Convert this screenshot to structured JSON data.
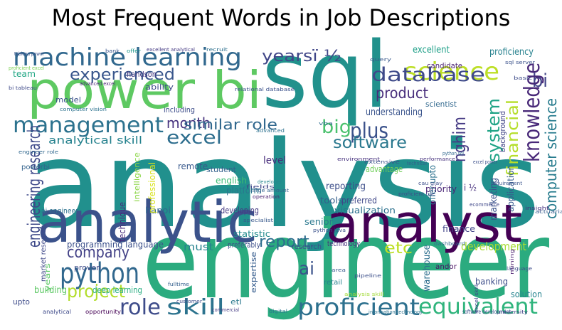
{
  "chart_data": {
    "type": "wordcloud",
    "title": "Most Frequent Words in Job Descriptions",
    "words": [
      {
        "text": "analysis",
        "color": "#21908d"
      },
      {
        "text": "engineer",
        "color": "#2bab7f"
      },
      {
        "text": "sql",
        "color": "#21918c"
      },
      {
        "text": "power bi",
        "color": "#5ec962"
      },
      {
        "text": "analytic",
        "color": "#3b528b"
      },
      {
        "text": "analyst",
        "color": "#440154"
      },
      {
        "text": "machine learning",
        "color": "#31688e"
      },
      {
        "text": "management",
        "color": "#2c728e"
      },
      {
        "text": "science",
        "color": "#bddf26"
      },
      {
        "text": "database",
        "color": "#3e4a89"
      },
      {
        "text": "bi",
        "color": "#414487"
      },
      {
        "text": "knowledge",
        "color": "#482878"
      },
      {
        "text": "financial",
        "color": "#b5de2b"
      },
      {
        "text": "computer science",
        "color": "#287c8e"
      },
      {
        "text": "system",
        "color": "#20a486"
      },
      {
        "text": "experienced",
        "color": "#39568c"
      },
      {
        "text": "yearsï ½",
        "color": "#404688"
      },
      {
        "text": "month",
        "color": "#46327e"
      },
      {
        "text": "excel",
        "color": "#2e6e8e"
      },
      {
        "text": "similar role",
        "color": "#31688e"
      },
      {
        "text": "big",
        "color": "#4ac16d"
      },
      {
        "text": "plus",
        "color": "#3b528b"
      },
      {
        "text": "product",
        "color": "#472d7b"
      },
      {
        "text": "software",
        "color": "#2a788e"
      },
      {
        "text": "nghim",
        "color": "#443983"
      },
      {
        "text": "engineering research",
        "color": "#3e4989"
      },
      {
        "text": "analytical skill",
        "color": "#26828e"
      },
      {
        "text": "report.",
        "color": "#2e6e8e"
      },
      {
        "text": "etc",
        "color": "#bddf26"
      },
      {
        "text": "development",
        "color": "#a8db34"
      },
      {
        "text": "company",
        "color": "#424086"
      },
      {
        "text": "python",
        "color": "#31688e"
      },
      {
        "text": "project",
        "color": "#b2dd2d"
      },
      {
        "text": "role",
        "color": "#3e4c8a"
      },
      {
        "text": "skill",
        "color": "#2c738e"
      },
      {
        "text": "ai",
        "color": "#3b528b"
      },
      {
        "text": "proficient",
        "color": "#2d708e"
      },
      {
        "text": "equivalent",
        "color": "#2fb47c"
      },
      {
        "text": "level",
        "color": "#472c7a"
      },
      {
        "text": "english",
        "color": "#3dbc74"
      },
      {
        "text": "platform",
        "color": "#2a778e"
      },
      {
        "text": "reporting",
        "color": "#3d4e8a"
      },
      {
        "text": "tools",
        "color": "#35608d"
      },
      {
        "text": "preferred",
        "color": "#3f4788"
      },
      {
        "text": "visualization",
        "color": "#2c718e"
      },
      {
        "text": "must",
        "color": "#26828e"
      },
      {
        "text": "programming language",
        "color": "#3c508b"
      },
      {
        "text": "marketing",
        "color": "#3b528b"
      },
      {
        "text": "priority",
        "color": "#482475"
      },
      {
        "text": "finance",
        "color": "#404387"
      },
      {
        "text": "banking",
        "color": "#3d4e8a"
      },
      {
        "text": "solution",
        "color": "#25838e"
      },
      {
        "text": "warehouse",
        "color": "#2e6f8e"
      },
      {
        "text": "building",
        "color": "#5cc863"
      },
      {
        "text": "deep learning",
        "color": "#27ad81"
      },
      {
        "text": "hanoi",
        "color": "#31678e"
      },
      {
        "text": "remote",
        "color": "#38598c"
      },
      {
        "text": "technique",
        "color": "#472a7a"
      },
      {
        "text": "developing",
        "color": "#443a83"
      },
      {
        "text": "statistic",
        "color": "#238a8d"
      },
      {
        "text": "senior",
        "color": "#2a788e"
      },
      {
        "text": "understanding",
        "color": "#3a548c"
      },
      {
        "text": "scientist",
        "color": "#31688e"
      },
      {
        "text": "excellent",
        "color": "#1fa088"
      },
      {
        "text": "proficiency",
        "color": "#26818e"
      },
      {
        "text": "candidate",
        "color": "#481f70"
      },
      {
        "text": "handson",
        "color": "#453882"
      },
      {
        "text": "ability",
        "color": "#3e4c8a"
      },
      {
        "text": "including",
        "color": "#3d4d8a"
      },
      {
        "text": "model",
        "color": "#3a538b"
      },
      {
        "text": "team",
        "color": "#22a785"
      },
      {
        "text": "advantage",
        "color": "#6ece58"
      },
      {
        "text": "offer upto",
        "color": "#2c728e"
      },
      {
        "text": "application",
        "color": "#375b8d"
      },
      {
        "text": "background",
        "color": "#414487"
      },
      {
        "text": "student",
        "color": "#34618d"
      },
      {
        "text": "technology",
        "color": "#46307e"
      },
      {
        "text": "research",
        "color": "#3c4f8a"
      },
      {
        "text": "andor",
        "color": "#471063"
      },
      {
        "text": "proven",
        "color": "#3e4a89"
      },
      {
        "text": "upto",
        "color": "#3e4c8a"
      },
      {
        "text": "etl",
        "color": "#2a788e"
      },
      {
        "text": "retail",
        "color": "#26828e"
      },
      {
        "text": "expertise",
        "color": "#365c8d"
      },
      {
        "text": "preferably",
        "color": "#3d4e8a"
      },
      {
        "text": "i ½",
        "color": "#472f7d"
      },
      {
        "text": "ai engineer",
        "color": "#2c728e"
      },
      {
        "text": "powerbi",
        "color": "#33638d"
      },
      {
        "text": "professional",
        "color": "#d8e219"
      },
      {
        "text": "intelligence",
        "color": "#8bd646"
      },
      {
        "text": "market research",
        "color": "#3f4889"
      },
      {
        "text": "years",
        "color": "#5ac864"
      },
      {
        "text": "tableau power",
        "color": "#3b528b"
      },
      {
        "text": "bank",
        "color": "#39568c"
      },
      {
        "text": "excellent analytical",
        "color": "#443983"
      },
      {
        "text": "recruit",
        "color": "#2d708e"
      },
      {
        "text": "offer",
        "color": "#1f968b"
      },
      {
        "text": "proficient excel",
        "color": "#7ad151"
      },
      {
        "text": "bi tableau",
        "color": "#3e4989"
      },
      {
        "text": "advanced excel",
        "color": "#482475"
      },
      {
        "text": "query",
        "color": "#38598c"
      },
      {
        "text": "sql server",
        "color": "#3b528b"
      },
      {
        "text": "basic",
        "color": "#3e4c8a"
      },
      {
        "text": "vba",
        "color": "#2f6c8e"
      },
      {
        "text": "environment",
        "color": "#46317e"
      },
      {
        "text": "advanced",
        "color": "#2c718e"
      },
      {
        "text": "fulltime",
        "color": "#35608d"
      },
      {
        "text": "customer",
        "color": "#3d4d8a"
      },
      {
        "text": "opportunity",
        "color": "#440154"
      },
      {
        "text": "analytical",
        "color": "#3e4a89"
      },
      {
        "text": "university",
        "color": "#414487"
      },
      {
        "text": "software development",
        "color": "#3b528b"
      },
      {
        "text": "information technology",
        "color": "#2c728e"
      },
      {
        "text": "analysis skill",
        "color": "#a2da37"
      },
      {
        "text": "commercial",
        "color": "#443983"
      },
      {
        "text": "digital",
        "color": "#2a788e"
      },
      {
        "text": "dashboard",
        "color": "#31688e"
      },
      {
        "text": "language",
        "color": "#3e4c8a"
      },
      {
        "text": "mining",
        "color": "#481b6d"
      },
      {
        "text": "pipeline",
        "color": "#3c4f8a"
      },
      {
        "text": "area",
        "color": "#375b8d"
      },
      {
        "text": "insight",
        "color": "#46337f"
      },
      {
        "text": "actuarial",
        "color": "#365d8d"
      },
      {
        "text": "excel skill",
        "color": "#404588"
      },
      {
        "text": "fields",
        "color": "#3f4788"
      },
      {
        "text": "python sql",
        "color": "#31688e"
      },
      {
        "text": "technical",
        "color": "#33638d"
      },
      {
        "text": "excel power",
        "color": "#3c508b"
      },
      {
        "text": "requirement",
        "color": "#3a548c"
      },
      {
        "text": "performance",
        "color": "#46327e"
      },
      {
        "text": "extensive",
        "color": "#3b528b"
      },
      {
        "text": "relational database",
        "color": "#3b518b"
      },
      {
        "text": "engineer role",
        "color": "#31688e"
      },
      {
        "text": "computer vision",
        "color": "#2c728e"
      },
      {
        "text": "ecommerce",
        "color": "#3f4788"
      },
      {
        "text": "cau giay",
        "color": "#3d4e8a"
      },
      {
        "text": "large amount",
        "color": "#33628d"
      },
      {
        "text": "operation",
        "color": "#481c6e"
      },
      {
        "text": "specialist",
        "color": "#38598c"
      },
      {
        "text": "python java",
        "color": "#3b528b"
      },
      {
        "text": "proficient use",
        "color": "#3e4c8a"
      },
      {
        "text": "developer",
        "color": "#25858e"
      }
    ]
  }
}
